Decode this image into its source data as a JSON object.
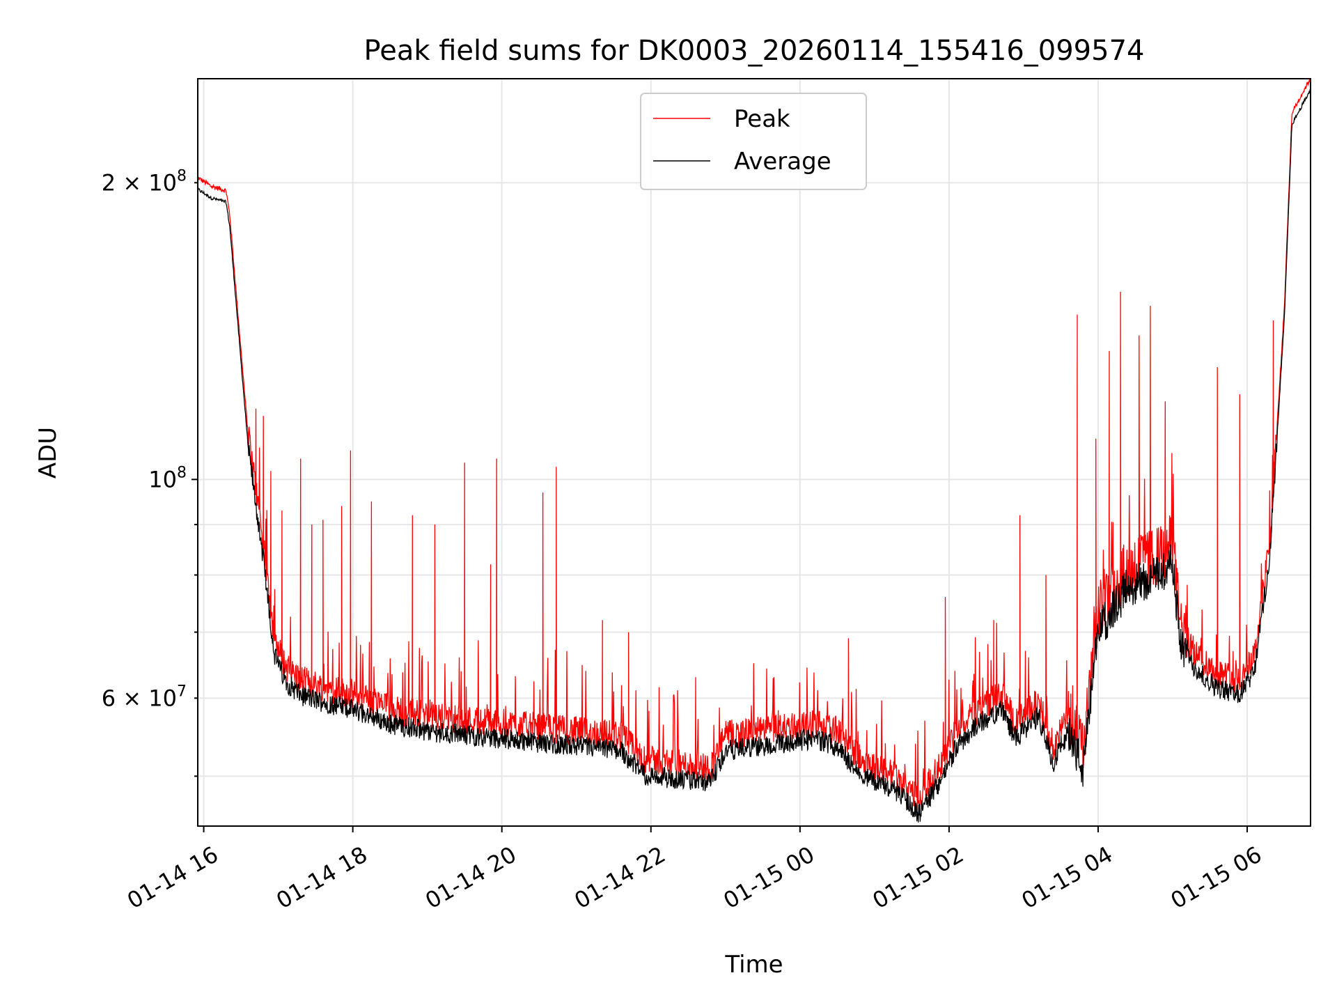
{
  "chart_data": {
    "type": "line",
    "title": "Peak field sums for DK0003_20260114_155416_099574",
    "xlabel": "Time",
    "ylabel": "ADU",
    "yscale": "log",
    "xlim_hours": [
      15.92,
      30.85
    ],
    "ylim": [
      44500000,
      255000000
    ],
    "grid": true,
    "legend_position": "upper center",
    "x_ticks": [
      {
        "hour": 16,
        "label": "01-14 16"
      },
      {
        "hour": 18,
        "label": "01-14 18"
      },
      {
        "hour": 20,
        "label": "01-14 20"
      },
      {
        "hour": 22,
        "label": "01-14 22"
      },
      {
        "hour": 24,
        "label": "01-15 00"
      },
      {
        "hour": 26,
        "label": "01-15 02"
      },
      {
        "hour": 28,
        "label": "01-15 04"
      },
      {
        "hour": 30,
        "label": "01-15 06"
      }
    ],
    "y_ticks_major": [
      {
        "value": 100000000,
        "mantissa": "",
        "base": "10",
        "exp": "8"
      }
    ],
    "y_ticks_minor_labeled": [
      {
        "value": 60000000,
        "mantissa": "6 × ",
        "base": "10",
        "exp": "7"
      },
      {
        "value": 200000000,
        "mantissa": "2 × ",
        "base": "10",
        "exp": "8"
      }
    ],
    "y_ticks_minor_unlabeled": [
      50000000,
      70000000,
      80000000,
      90000000
    ],
    "series": [
      {
        "name": "Peak",
        "color": "#ff0000",
        "baseline_hours": [
          15.92,
          16.1,
          16.3,
          16.35,
          16.5,
          16.6,
          16.8,
          16.95,
          17.1,
          17.3,
          17.6,
          18.0,
          18.5,
          19.0,
          20.0,
          21.0,
          21.6,
          21.9,
          22.3,
          22.8,
          23.0,
          23.5,
          23.8,
          24.2,
          24.5,
          24.8,
          25.3,
          25.6,
          25.9,
          26.1,
          26.4,
          26.7,
          26.9,
          27.2,
          27.4,
          27.6,
          27.8,
          28.0,
          28.4,
          28.8,
          29.0,
          29.1,
          29.3,
          29.6,
          29.9,
          30.1,
          30.3,
          30.5,
          30.6,
          30.85
        ],
        "baseline_values": [
          202000000,
          198000000,
          196000000,
          185000000,
          135000000,
          110000000,
          85000000,
          68000000,
          64000000,
          62000000,
          61000000,
          60000000,
          58000000,
          57000000,
          56000000,
          55000000,
          54500000,
          51500000,
          51000000,
          50500000,
          54500000,
          55000000,
          55500000,
          56000000,
          55000000,
          51500000,
          49500000,
          47000000,
          51000000,
          55000000,
          58000000,
          60000000,
          56000000,
          59000000,
          53000000,
          57000000,
          52000000,
          72000000,
          80000000,
          82000000,
          85000000,
          70000000,
          66000000,
          63000000,
          62000000,
          66000000,
          85000000,
          150000000,
          235000000,
          255000000
        ],
        "spikes": [
          {
            "hour": 16.7,
            "value": 118000000
          },
          {
            "hour": 16.8,
            "value": 116000000
          },
          {
            "hour": 16.9,
            "value": 102000000
          },
          {
            "hour": 17.05,
            "value": 93000000
          },
          {
            "hour": 17.3,
            "value": 105000000
          },
          {
            "hour": 17.45,
            "value": 90000000
          },
          {
            "hour": 17.6,
            "value": 91000000
          },
          {
            "hour": 17.85,
            "value": 94000000
          },
          {
            "hour": 17.97,
            "value": 107000000
          },
          {
            "hour": 18.25,
            "value": 95000000
          },
          {
            "hour": 18.8,
            "value": 92000000
          },
          {
            "hour": 19.1,
            "value": 90000000
          },
          {
            "hour": 19.5,
            "value": 104000000
          },
          {
            "hour": 19.85,
            "value": 82000000
          },
          {
            "hour": 19.93,
            "value": 105000000
          },
          {
            "hour": 20.55,
            "value": 97000000
          },
          {
            "hour": 20.73,
            "value": 103000000
          },
          {
            "hour": 21.35,
            "value": 72000000
          },
          {
            "hour": 21.7,
            "value": 70000000
          },
          {
            "hour": 22.6,
            "value": 63000000
          },
          {
            "hour": 24.65,
            "value": 69000000
          },
          {
            "hour": 25.95,
            "value": 76000000
          },
          {
            "hour": 26.6,
            "value": 72000000
          },
          {
            "hour": 26.95,
            "value": 92000000
          },
          {
            "hour": 27.3,
            "value": 80000000
          },
          {
            "hour": 27.72,
            "value": 147000000
          },
          {
            "hour": 27.97,
            "value": 110000000
          },
          {
            "hour": 28.15,
            "value": 135000000
          },
          {
            "hour": 28.3,
            "value": 155000000
          },
          {
            "hour": 28.55,
            "value": 140000000
          },
          {
            "hour": 28.7,
            "value": 150000000
          },
          {
            "hour": 28.9,
            "value": 120000000
          },
          {
            "hour": 29.6,
            "value": 130000000
          },
          {
            "hour": 29.9,
            "value": 122000000
          },
          {
            "hour": 30.35,
            "value": 145000000
          }
        ]
      },
      {
        "name": "Average",
        "color": "#000000",
        "offset_factor": 0.975
      }
    ]
  }
}
